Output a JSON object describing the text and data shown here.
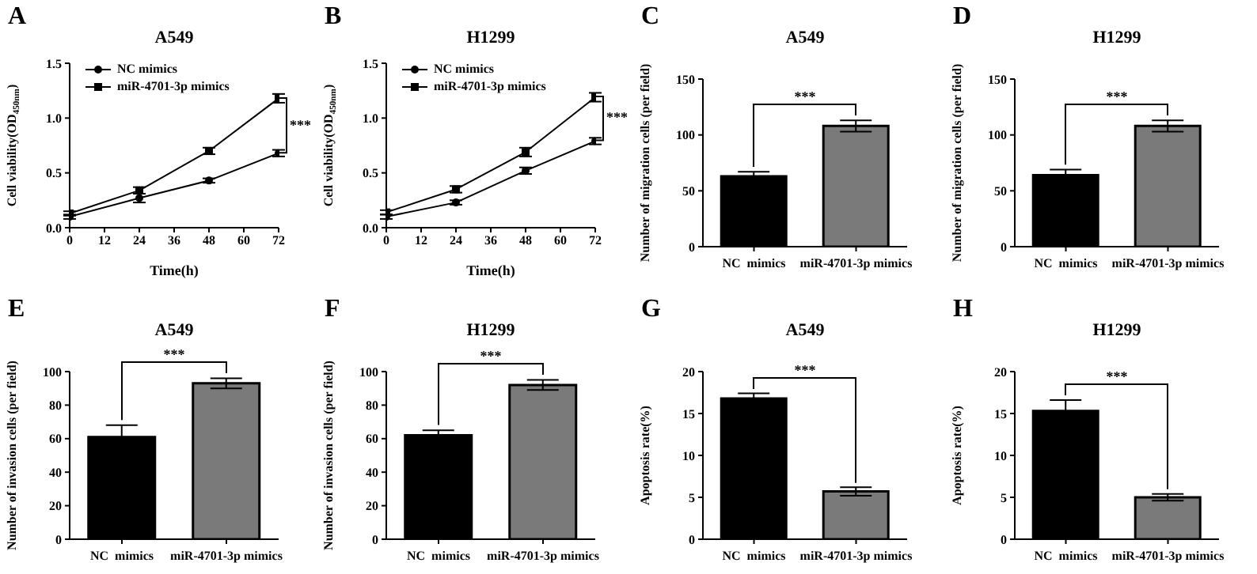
{
  "chart_data": [
    {
      "type": "line",
      "title": "A549",
      "xlabel": "Time(h)",
      "ylabel": "Cell viability(OD$_{450nm}$)",
      "annotations": [
        "A",
        "***"
      ],
      "x": [
        0,
        24,
        48,
        72
      ],
      "xlim": [
        0,
        72
      ],
      "xticks": [
        0,
        12,
        24,
        36,
        48,
        60,
        72
      ],
      "ylim": [
        0,
        1.5
      ],
      "yticks": [
        {
          "value": 0,
          "label": "0.0"
        },
        {
          "value": 0.5,
          "label": "0.5"
        },
        {
          "value": 1,
          "label": "1.0"
        },
        {
          "value": 1.5,
          "label": "1.5"
        }
      ],
      "legend": "top left",
      "series": [
        {
          "name": "NC mimics",
          "color": "#000000",
          "marker": "circle",
          "values": [
            0.1,
            0.27,
            0.43,
            0.68
          ],
          "errors": [
            0.02,
            0.04,
            0.02,
            0.03
          ]
        },
        {
          "name": "miR-4701-3p mimics",
          "color": "#000000",
          "marker": "square",
          "values": [
            0.13,
            0.34,
            0.7,
            1.18
          ],
          "errors": [
            0.02,
            0.03,
            0.03,
            0.04
          ]
        }
      ]
    },
    {
      "type": "line",
      "title": "H1299",
      "xlabel": "Time(h)",
      "ylabel": "Cell viability(OD$_{450nm}$)",
      "annotations": [
        "B",
        "***"
      ],
      "x": [
        0,
        24,
        48,
        72
      ],
      "xlim": [
        0,
        72
      ],
      "xticks": [
        0,
        12,
        24,
        36,
        48,
        60,
        72
      ],
      "ylim": [
        0,
        1.5
      ],
      "yticks": [
        {
          "value": 0,
          "label": "0.0"
        },
        {
          "value": 0.5,
          "label": "0.5"
        },
        {
          "value": 1,
          "label": "1.0"
        },
        {
          "value": 1.5,
          "label": "1.5"
        }
      ],
      "legend": "top left",
      "series": [
        {
          "name": "NC mimics",
          "color": "#000000",
          "marker": "circle",
          "values": [
            0.1,
            0.23,
            0.52,
            0.79
          ],
          "errors": [
            0.02,
            0.02,
            0.03,
            0.03
          ]
        },
        {
          "name": "miR-4701-3p mimics",
          "color": "#000000",
          "marker": "square",
          "values": [
            0.14,
            0.35,
            0.69,
            1.19
          ],
          "errors": [
            0.02,
            0.03,
            0.04,
            0.04
          ]
        }
      ]
    },
    {
      "type": "bar",
      "title": "A549",
      "ylabel": "Number of migration cells (per field)",
      "annotations": [
        "C",
        "***"
      ],
      "categories": [
        "NC  mimics",
        "miR-4701-3p mimics"
      ],
      "values": [
        63,
        108
      ],
      "errors": [
        4,
        5
      ],
      "colors": [
        "#000000",
        "#7a7a7a"
      ],
      "ylim": [
        0,
        150
      ],
      "yticks": [
        0,
        50,
        100,
        150
      ]
    },
    {
      "type": "bar",
      "title": "H1299",
      "ylabel": "Number of migration cells (per field)",
      "annotations": [
        "D",
        "***"
      ],
      "categories": [
        "NC  mimics",
        "miR-4701-3p mimics"
      ],
      "values": [
        64,
        108
      ],
      "errors": [
        5,
        5
      ],
      "colors": [
        "#000000",
        "#7a7a7a"
      ],
      "ylim": [
        0,
        150
      ],
      "yticks": [
        0,
        50,
        100,
        150
      ]
    },
    {
      "type": "bar",
      "title": "A549",
      "ylabel": "Number of invasion cells (per field)",
      "annotations": [
        "E",
        "***"
      ],
      "categories": [
        "NC  mimics",
        "miR-4701-3p mimics"
      ],
      "values": [
        61,
        93
      ],
      "errors": [
        7,
        3
      ],
      "colors": [
        "#000000",
        "#7a7a7a"
      ],
      "ylim": [
        0,
        100
      ],
      "yticks": [
        0,
        20,
        40,
        60,
        80,
        100
      ]
    },
    {
      "type": "bar",
      "title": "H1299",
      "ylabel": "Number of invasion cells (per field)",
      "annotations": [
        "F",
        "***"
      ],
      "categories": [
        "NC  mimics",
        "miR-4701-3p mimics"
      ],
      "values": [
        62,
        92
      ],
      "errors": [
        3,
        3
      ],
      "colors": [
        "#000000",
        "#7a7a7a"
      ],
      "ylim": [
        0,
        100
      ],
      "yticks": [
        0,
        20,
        40,
        60,
        80,
        100
      ]
    },
    {
      "type": "bar",
      "title": "A549",
      "ylabel": "Apoptosis rate(%)",
      "annotations": [
        "G",
        "***"
      ],
      "categories": [
        "NC  mimics",
        "miR-4701-3p mimics"
      ],
      "values": [
        16.8,
        5.7
      ],
      "errors": [
        0.6,
        0.5
      ],
      "colors": [
        "#000000",
        "#7a7a7a"
      ],
      "ylim": [
        0,
        20
      ],
      "yticks": [
        0,
        5,
        10,
        15,
        20
      ]
    },
    {
      "type": "bar",
      "title": "H1299",
      "ylabel": "Apoptosis rate(%)",
      "annotations": [
        "H",
        "***"
      ],
      "categories": [
        "NC  mimics",
        "miR-4701-3p mimics"
      ],
      "values": [
        15.3,
        5.0
      ],
      "errors": [
        1.3,
        0.4
      ],
      "colors": [
        "#000000",
        "#7a7a7a"
      ],
      "ylim": [
        0,
        20
      ],
      "yticks": [
        0,
        5,
        10,
        15,
        20
      ]
    }
  ]
}
